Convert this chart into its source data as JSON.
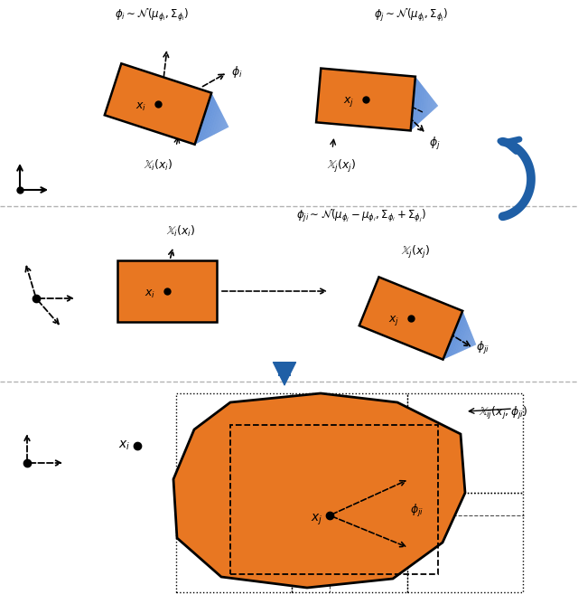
{
  "orange_color": "#E87722",
  "blue_cone_color": "#5B8DD9",
  "blue_arrow_color": "#1F5FA6",
  "black": "#000000",
  "gray": "#808080",
  "bg_color": "#FFFFFF",
  "panel1_title_i": "$\\phi_i \\sim \\mathcal{N}(\\mu_{\\phi_i}, \\Sigma_{\\phi_i})$",
  "panel1_title_j": "$\\phi_j \\sim \\mathcal{N}(\\mu_{\\phi_j}, \\Sigma_{\\phi_j})$",
  "panel2_title": "$\\phi_{ji} \\sim \\mathcal{N}(\\mu_{\\phi_j} - \\mu_{\\phi_i}, \\Sigma_{\\phi_i} + \\Sigma_{\\phi_j})$",
  "panel3_label": "$\\mathbb{X}_{ij}(x_j, \\phi_{ji})$"
}
